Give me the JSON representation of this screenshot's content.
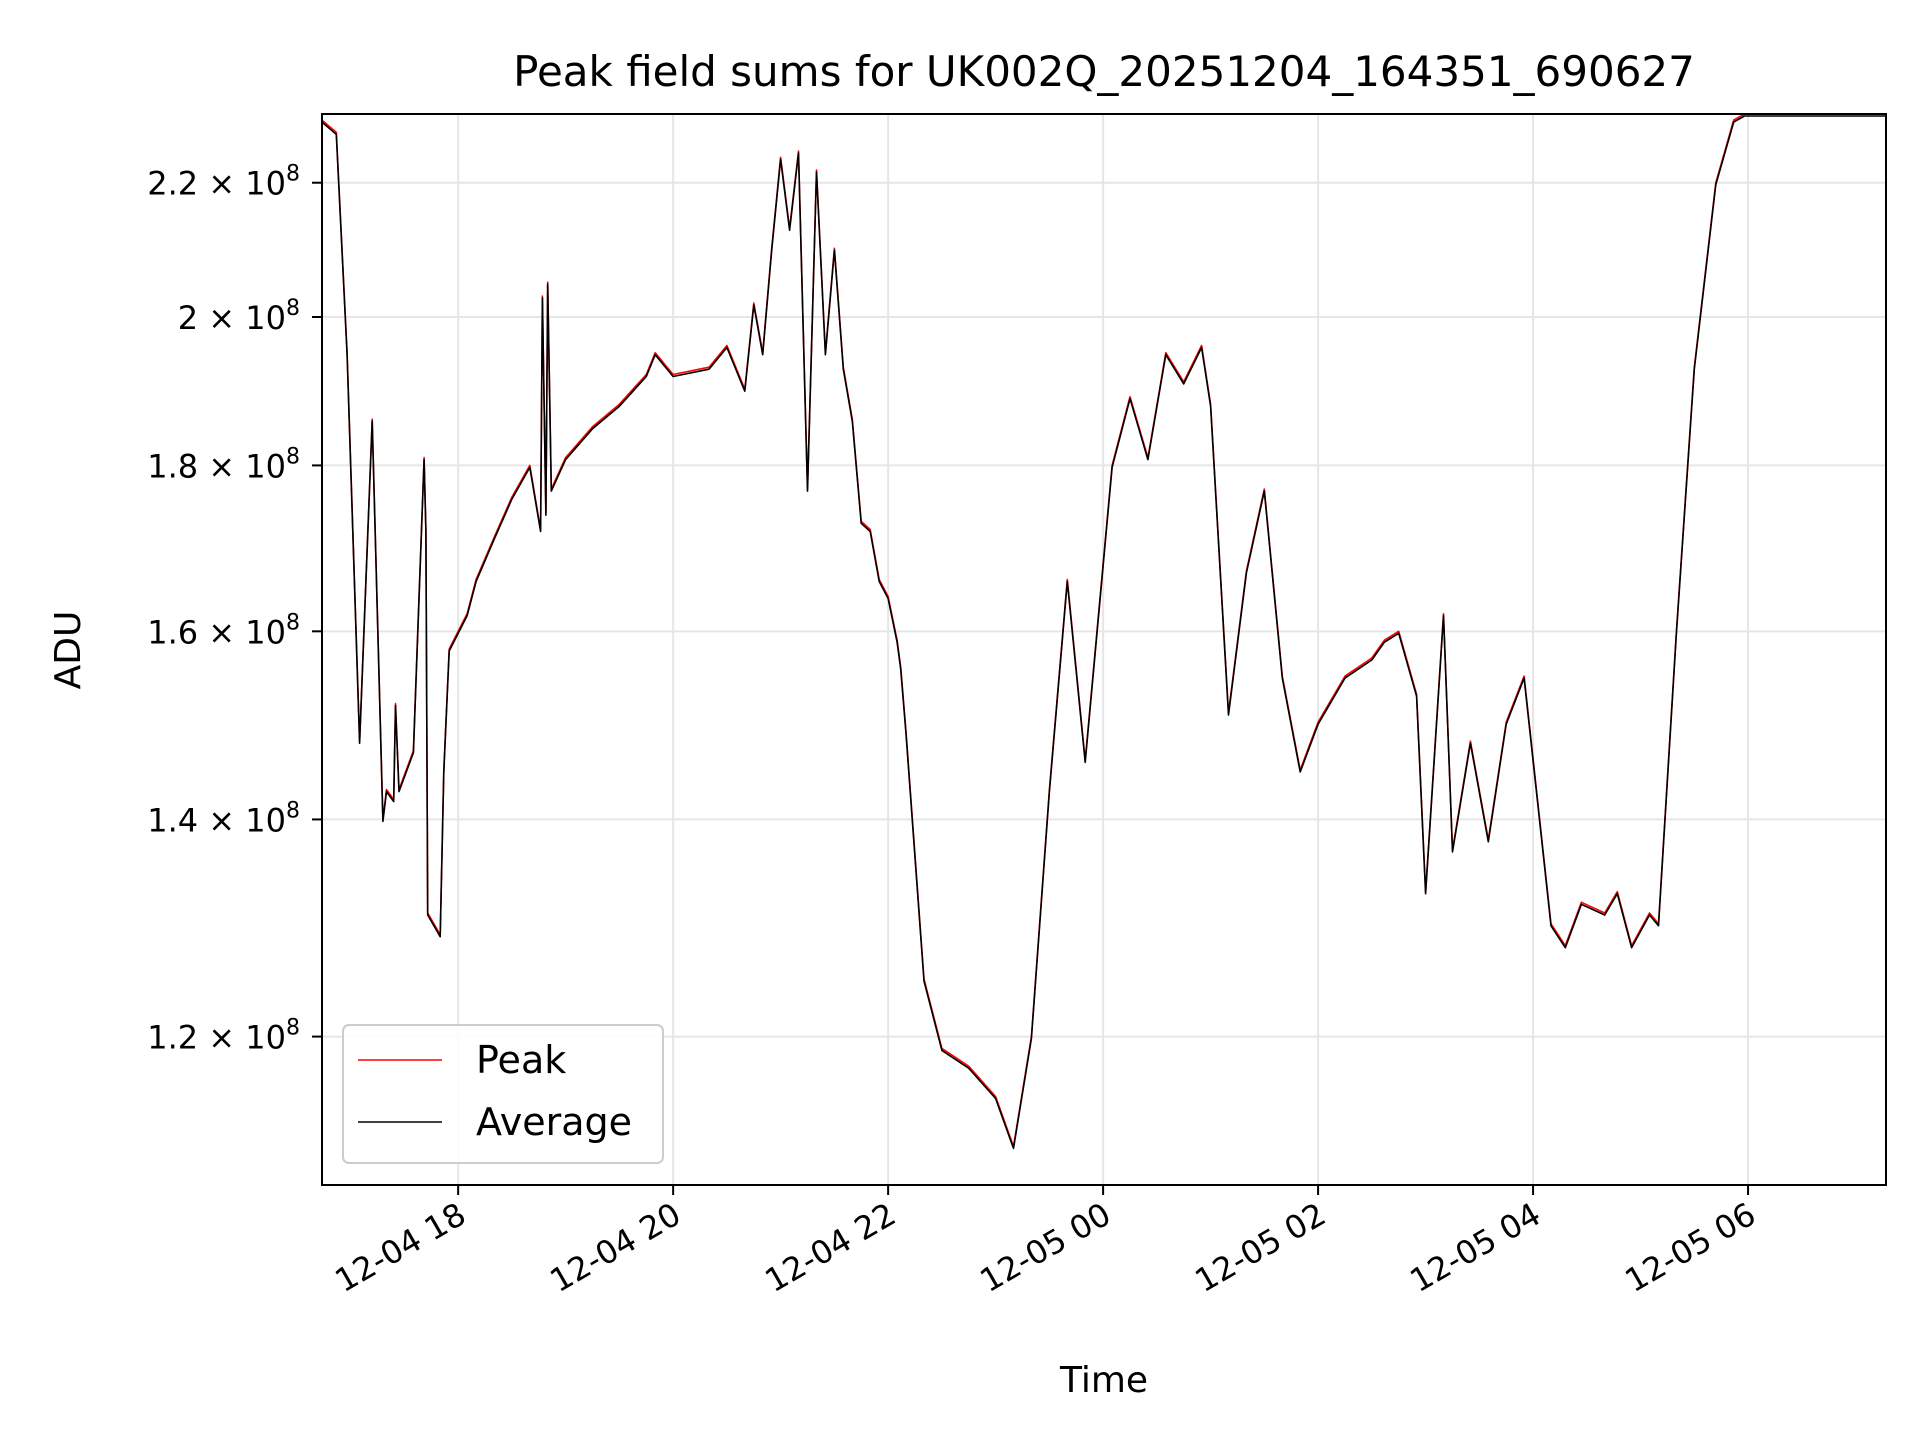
{
  "chart_data": {
    "type": "line",
    "title": "Peak field sums for UK002Q_20251204_164351_690627",
    "xlabel": "Time",
    "ylabel": "ADU",
    "y_scale": "log",
    "xlim": [
      "2025-12-04 16:44",
      "2025-12-05 07:17"
    ],
    "ylim": [
      108000000,
      231000000
    ],
    "grid": true,
    "legend_position": "lower-left",
    "x_ticks": [
      "2025-12-04 18:00",
      "2025-12-04 20:00",
      "2025-12-04 22:00",
      "2025-12-05 00:00",
      "2025-12-05 02:00",
      "2025-12-05 04:00",
      "2025-12-05 06:00"
    ],
    "x_tick_labels": [
      "12-04 18",
      "12-04 20",
      "12-04 22",
      "12-05 00",
      "12-05 02",
      "12-05 04",
      "12-05 06"
    ],
    "y_ticks": [
      120000000,
      140000000,
      160000000,
      180000000,
      200000000,
      220000000
    ],
    "y_tick_labels": [
      {
        "mantissa": "1.2",
        "exponent": "8"
      },
      {
        "mantissa": "1.4",
        "exponent": "8"
      },
      {
        "mantissa": "1.6",
        "exponent": "8"
      },
      {
        "mantissa": "1.8",
        "exponent": "8"
      },
      {
        "mantissa": "2",
        "exponent": "8"
      },
      {
        "mantissa": "2.2",
        "exponent": "8"
      }
    ],
    "y_tick_prefix": "× 10",
    "series": [
      {
        "name": "Peak",
        "color": "#ff0000",
        "x": [
          "2025-12-04 16:44",
          "2025-12-04 16:52",
          "2025-12-04 16:58",
          "2025-12-04 17:05",
          "2025-12-04 17:12",
          "2025-12-04 17:18",
          "2025-12-04 17:20",
          "2025-12-04 17:24",
          "2025-12-04 17:25",
          "2025-12-04 17:27",
          "2025-12-04 17:35",
          "2025-12-04 17:41",
          "2025-12-04 17:42",
          "2025-12-04 17:43",
          "2025-12-04 17:50",
          "2025-12-04 17:52",
          "2025-12-04 17:55",
          "2025-12-04 18:00",
          "2025-12-04 18:05",
          "2025-12-04 18:10",
          "2025-12-04 18:20",
          "2025-12-04 18:30",
          "2025-12-04 18:40",
          "2025-12-04 18:46",
          "2025-12-04 18:47",
          "2025-12-04 18:49",
          "2025-12-04 18:50",
          "2025-12-04 18:52",
          "2025-12-04 19:00",
          "2025-12-04 19:15",
          "2025-12-04 19:30",
          "2025-12-04 19:45",
          "2025-12-04 19:50",
          "2025-12-04 20:00",
          "2025-12-04 20:20",
          "2025-12-04 20:30",
          "2025-12-04 20:40",
          "2025-12-04 20:45",
          "2025-12-04 20:50",
          "2025-12-04 20:55",
          "2025-12-04 21:00",
          "2025-12-04 21:05",
          "2025-12-04 21:10",
          "2025-12-04 21:15",
          "2025-12-04 21:20",
          "2025-12-04 21:25",
          "2025-12-04 21:30",
          "2025-12-04 21:35",
          "2025-12-04 21:40",
          "2025-12-04 21:45",
          "2025-12-04 21:50",
          "2025-12-04 21:55",
          "2025-12-04 22:00",
          "2025-12-04 22:05",
          "2025-12-04 22:07",
          "2025-12-04 22:10",
          "2025-12-04 22:20",
          "2025-12-04 22:30",
          "2025-12-04 22:45",
          "2025-12-04 23:00",
          "2025-12-04 23:10",
          "2025-12-04 23:20",
          "2025-12-04 23:30",
          "2025-12-04 23:40",
          "2025-12-04 23:50",
          "2025-12-05 00:05",
          "2025-12-05 00:15",
          "2025-12-05 00:25",
          "2025-12-05 00:35",
          "2025-12-05 00:45",
          "2025-12-05 00:55",
          "2025-12-05 01:00",
          "2025-12-05 01:10",
          "2025-12-05 01:20",
          "2025-12-05 01:30",
          "2025-12-05 01:40",
          "2025-12-05 01:50",
          "2025-12-05 02:00",
          "2025-12-05 02:15",
          "2025-12-05 02:30",
          "2025-12-05 02:37",
          "2025-12-05 02:45",
          "2025-12-05 02:55",
          "2025-12-05 03:00",
          "2025-12-05 03:10",
          "2025-12-05 03:15",
          "2025-12-05 03:25",
          "2025-12-05 03:35",
          "2025-12-05 03:45",
          "2025-12-05 03:55",
          "2025-12-05 04:10",
          "2025-12-05 04:18",
          "2025-12-05 04:27",
          "2025-12-05 04:40",
          "2025-12-05 04:47",
          "2025-12-05 04:55",
          "2025-12-05 05:05",
          "2025-12-05 05:10",
          "2025-12-05 05:20",
          "2025-12-05 05:30",
          "2025-12-05 05:42",
          "2025-12-05 05:52",
          "2025-12-05 05:58",
          "2025-12-05 06:08",
          "2025-12-05 06:20",
          "2025-12-05 06:30",
          "2025-12-05 06:45",
          "2025-12-05 06:55",
          "2025-12-05 07:05",
          "2025-12-05 07:17"
        ],
        "values": [
          230000000,
          228000000,
          195000000,
          148000000,
          186000000,
          140000000,
          143000000,
          142000000,
          152000000,
          143000000,
          147000000,
          181000000,
          172000000,
          131000000,
          129000000,
          145000000,
          158000000,
          160000000,
          162000000,
          166000000,
          171000000,
          176000000,
          180000000,
          172000000,
          203000000,
          174000000,
          205000000,
          177000000,
          181000000,
          185000000,
          188000000,
          192000000,
          195000000,
          192000000,
          193000000,
          196000000,
          190000000,
          202000000,
          195000000,
          210000000,
          224000000,
          213000000,
          225000000,
          177000000,
          222000000,
          195000000,
          210000000,
          193000000,
          186000000,
          173000000,
          172000000,
          166000000,
          164000000,
          159000000,
          156000000,
          149000000,
          125000000,
          119000000,
          117500000,
          115000000,
          111000000,
          120000000,
          143000000,
          166000000,
          146000000,
          180000000,
          189000000,
          181000000,
          195000000,
          191000000,
          196000000,
          188000000,
          151000000,
          167000000,
          177000000,
          155000000,
          145000000,
          150000000,
          155000000,
          157000000,
          159000000,
          160000000,
          153000000,
          133000000,
          162000000,
          137000000,
          148000000,
          138000000,
          150000000,
          155000000,
          130000000,
          128000000,
          132000000,
          131000000,
          133000000,
          128000000,
          131000000,
          130000000,
          160000000,
          193000000,
          220000000,
          230000000,
          231000000,
          231000000,
          231000000,
          231000000,
          231000000,
          231000000,
          231000000,
          231000000
        ],
        "values_note": ""
      },
      {
        "name": "Average",
        "color": "#000000",
        "x": [],
        "values": []
      }
    ]
  }
}
